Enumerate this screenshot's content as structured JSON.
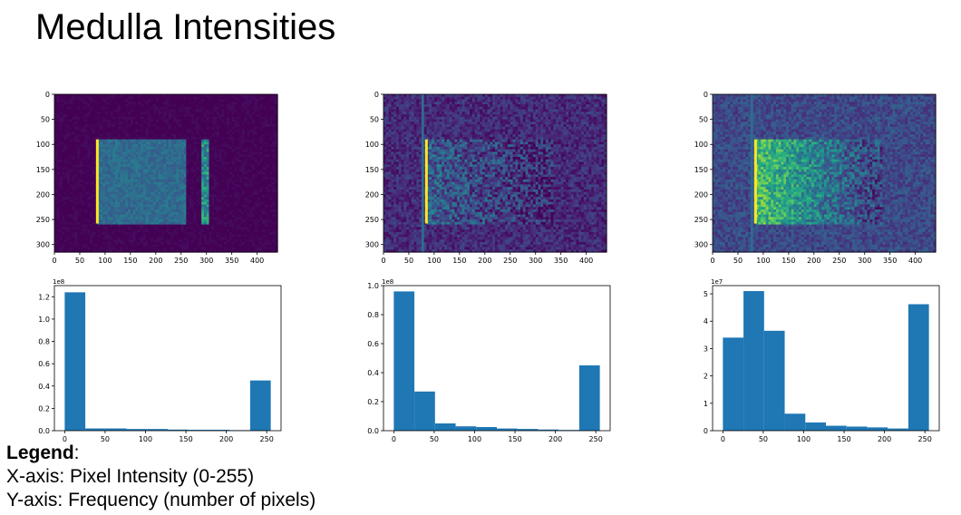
{
  "title": "Medulla Intensities",
  "legend": {
    "heading": "Legend",
    "colon": ":",
    "x_axis": "X-axis: Pixel Intensity (0-255)",
    "y_axis": "Y-axis: Frequency (number of pixels)"
  },
  "colors": {
    "bar": "#1f77b4",
    "viridis_low": "#440154",
    "viridis_mid": "#21918c",
    "viridis_high": "#fde725"
  },
  "images": [
    {
      "type": "heatmap",
      "colormap": "viridis",
      "x_ticks": [
        0,
        50,
        100,
        150,
        200,
        250,
        300,
        350,
        400
      ],
      "y_ticks": [
        0,
        50,
        100,
        150,
        200,
        250,
        300
      ],
      "xlim": [
        0,
        440
      ],
      "ylim": [
        315,
        0
      ],
      "features": {
        "bright_column_x": 85,
        "region_x": [
          85,
          255
        ],
        "region_y": [
          90,
          258
        ],
        "stripes_x": 295,
        "falloff": "flat",
        "noise": 0.15,
        "region_level": 0.35,
        "background_level": 0.0
      }
    },
    {
      "type": "heatmap",
      "colormap": "viridis",
      "x_ticks": [
        0,
        50,
        100,
        150,
        200,
        250,
        300,
        350,
        400
      ],
      "y_ticks": [
        0,
        50,
        100,
        150,
        200,
        250,
        300
      ],
      "xlim": [
        0,
        440
      ],
      "ylim": [
        315,
        0
      ],
      "features": {
        "bright_column_x": 85,
        "region_x": [
          85,
          330
        ],
        "region_y": [
          90,
          258
        ],
        "stripes_x": null,
        "falloff": "gradual",
        "noise": 0.4,
        "region_level": 0.3,
        "background_level": 0.12
      }
    },
    {
      "type": "heatmap",
      "colormap": "viridis",
      "x_ticks": [
        0,
        50,
        100,
        150,
        200,
        250,
        300,
        350,
        400
      ],
      "y_ticks": [
        0,
        50,
        100,
        150,
        200,
        250,
        300
      ],
      "xlim": [
        0,
        440
      ],
      "ylim": [
        315,
        0
      ],
      "features": {
        "bright_column_x": 85,
        "region_x": [
          85,
          330
        ],
        "region_y": [
          90,
          258
        ],
        "stripes_x": null,
        "falloff": "gradual",
        "noise": 0.4,
        "region_level": 0.7,
        "background_level": 0.22
      }
    }
  ],
  "chart_data": [
    {
      "type": "bar",
      "ylabel_exponent": "1e8",
      "x_ticks": [
        0,
        50,
        100,
        150,
        200,
        250
      ],
      "y_ticks": [
        "0.0",
        "0.2",
        "0.4",
        "0.6",
        "0.8",
        "1.0",
        "1.2"
      ],
      "xlim": [
        -12.75,
        267.75
      ],
      "ylim": [
        0,
        1.3
      ],
      "bin_edges": [
        0,
        25.5,
        51,
        76.5,
        102,
        127.5,
        153,
        178.5,
        204,
        229.5,
        255
      ],
      "values": [
        1.24,
        0.02,
        0.02,
        0.015,
        0.015,
        0.01,
        0.008,
        0.008,
        0.005,
        0.45
      ]
    },
    {
      "type": "bar",
      "ylabel_exponent": "1e8",
      "x_ticks": [
        0,
        50,
        100,
        150,
        200,
        250
      ],
      "y_ticks": [
        "0.0",
        "0.2",
        "0.4",
        "0.6",
        "0.8",
        "1.0"
      ],
      "xlim": [
        -12.75,
        267.75
      ],
      "ylim": [
        0,
        1.0
      ],
      "bin_edges": [
        0,
        25.5,
        51,
        76.5,
        102,
        127.5,
        153,
        178.5,
        204,
        229.5,
        255
      ],
      "values": [
        0.96,
        0.27,
        0.05,
        0.03,
        0.025,
        0.015,
        0.012,
        0.008,
        0.005,
        0.45
      ]
    },
    {
      "type": "bar",
      "ylabel_exponent": "1e7",
      "x_ticks": [
        0,
        50,
        100,
        150,
        200,
        250
      ],
      "y_ticks": [
        "0",
        "1",
        "2",
        "3",
        "4",
        "5"
      ],
      "xlim": [
        -12.75,
        267.75
      ],
      "ylim": [
        0,
        5.3
      ],
      "bin_edges": [
        0,
        25.5,
        51,
        76.5,
        102,
        127.5,
        153,
        178.5,
        204,
        229.5,
        255
      ],
      "values": [
        3.4,
        5.1,
        3.65,
        0.62,
        0.3,
        0.18,
        0.15,
        0.12,
        0.08,
        4.62
      ]
    }
  ]
}
